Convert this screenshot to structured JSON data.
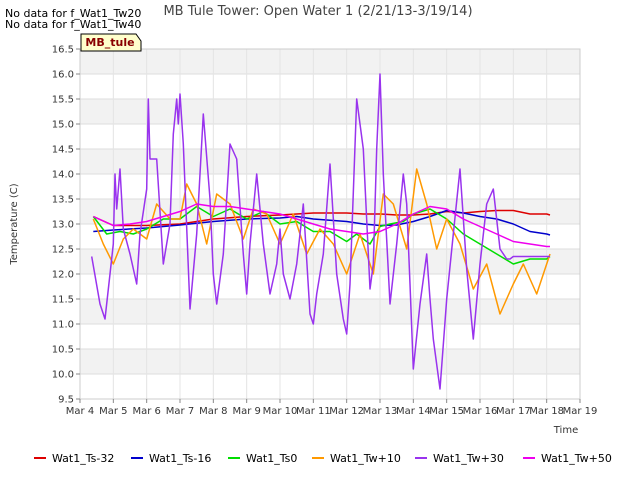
{
  "nodata_messages": [
    "No data for f_Wat1_Tw20",
    "No data for f_Wat1_Tw40"
  ],
  "chart_data": {
    "type": "line",
    "title": "MB Tule Tower: Open Water 1 (2/21/13-3/19/14)",
    "xlabel": "Time",
    "ylabel": "Temperature (C)",
    "ylim": [
      9.5,
      16.5
    ],
    "xlim": [
      4,
      19
    ],
    "x_ticks": [
      {
        "x": 4,
        "label": "Mar 4"
      },
      {
        "x": 5,
        "label": "Mar 5"
      },
      {
        "x": 6,
        "label": "Mar 6"
      },
      {
        "x": 7,
        "label": "Mar 7"
      },
      {
        "x": 8,
        "label": "Mar 8"
      },
      {
        "x": 9,
        "label": "Mar 9"
      },
      {
        "x": 10,
        "label": "Mar 10"
      },
      {
        "x": 11,
        "label": "Mar 11"
      },
      {
        "x": 12,
        "label": "Mar 12"
      },
      {
        "x": 13,
        "label": "Mar 13"
      },
      {
        "x": 14,
        "label": "Mar 14"
      },
      {
        "x": 15,
        "label": "Mar 15"
      },
      {
        "x": 16,
        "label": "Mar 16"
      },
      {
        "x": 17,
        "label": "Mar 17"
      },
      {
        "x": 18,
        "label": "Mar 18"
      },
      {
        "x": 19,
        "label": "Mar 19"
      }
    ],
    "y_ticks": [
      "9.5",
      "10.0",
      "10.5",
      "11.0",
      "11.5",
      "12.0",
      "12.5",
      "13.0",
      "13.5",
      "14.0",
      "14.5",
      "15.0",
      "15.5",
      "16.0",
      "16.5"
    ],
    "grid": true,
    "legend_position": "bottom",
    "annotation_label": "MB_tule",
    "series": [
      {
        "name": "Wat1_Ts-32",
        "color": "#dd0000",
        "x": [
          4.4,
          5,
          6,
          7,
          8,
          9,
          10,
          11,
          12,
          12.5,
          13,
          13.5,
          14,
          14.5,
          15,
          15.5,
          16,
          16.5,
          17,
          17.5,
          18,
          18.1
        ],
        "y": [
          13.15,
          12.97,
          12.97,
          13.0,
          13.1,
          13.15,
          13.18,
          13.22,
          13.22,
          13.2,
          13.2,
          13.18,
          13.18,
          13.2,
          13.25,
          13.22,
          13.25,
          13.27,
          13.27,
          13.2,
          13.2,
          13.18
        ]
      },
      {
        "name": "Wat1_Ts-16",
        "color": "#0000cc",
        "x": [
          4.4,
          5,
          6,
          7,
          8,
          9,
          10,
          10.5,
          11,
          12,
          12.5,
          13,
          13.5,
          14,
          14.5,
          15,
          15.5,
          16,
          16.5,
          17,
          17.5,
          18,
          18.1
        ],
        "y": [
          12.85,
          12.88,
          12.92,
          12.98,
          13.05,
          13.1,
          13.12,
          13.15,
          13.1,
          13.05,
          13.0,
          12.97,
          12.98,
          13.05,
          13.15,
          13.27,
          13.22,
          13.15,
          13.1,
          13.0,
          12.85,
          12.8,
          12.78
        ]
      },
      {
        "name": "Wat1_Ts0",
        "color": "#00dd00",
        "x": [
          4.4,
          4.8,
          5.2,
          5.6,
          6,
          6.5,
          7,
          7.5,
          8,
          8.5,
          9,
          9.5,
          10,
          10.5,
          11,
          11.5,
          12,
          12.3,
          12.7,
          13,
          13.3,
          13.7,
          14,
          14.5,
          15,
          15.5,
          16,
          16.5,
          17,
          17.5,
          18,
          18.1
        ],
        "y": [
          13.15,
          12.8,
          12.85,
          12.8,
          12.9,
          13.1,
          13.1,
          13.35,
          13.15,
          13.3,
          13.1,
          13.25,
          13.0,
          13.05,
          12.85,
          12.85,
          12.65,
          12.8,
          12.6,
          12.95,
          13.0,
          13.05,
          13.2,
          13.3,
          13.1,
          12.8,
          12.6,
          12.4,
          12.2,
          12.3,
          12.3,
          12.35
        ]
      },
      {
        "name": "Wat1_Tw+10",
        "color": "#ff9900",
        "x": [
          4.4,
          4.7,
          5.0,
          5.3,
          5.6,
          6.0,
          6.3,
          6.7,
          7.0,
          7.2,
          7.5,
          7.8,
          8.1,
          8.5,
          8.9,
          9.2,
          9.6,
          10.0,
          10.4,
          10.8,
          11.2,
          11.6,
          12.0,
          12.4,
          12.8,
          13.1,
          13.4,
          13.8,
          14.1,
          14.4,
          14.7,
          15.0,
          15.4,
          15.8,
          16.2,
          16.6,
          17.0,
          17.3,
          17.7,
          18.1
        ],
        "y": [
          13.1,
          12.6,
          12.2,
          12.7,
          12.9,
          12.7,
          13.4,
          13.1,
          13.1,
          13.8,
          13.4,
          12.6,
          13.6,
          13.4,
          12.7,
          13.3,
          13.2,
          12.6,
          13.2,
          12.4,
          12.9,
          12.6,
          12.0,
          12.8,
          12.0,
          13.6,
          13.4,
          12.5,
          14.1,
          13.4,
          12.5,
          13.1,
          12.6,
          11.7,
          12.2,
          11.2,
          11.8,
          12.2,
          11.6,
          12.4
        ]
      },
      {
        "name": "Wat1_Tw+30",
        "color": "#9933ee",
        "x": [
          4.35,
          4.6,
          4.75,
          4.9,
          5.0,
          5.05,
          5.1,
          5.2,
          5.3,
          5.5,
          5.7,
          5.8,
          6.0,
          6.05,
          6.1,
          6.3,
          6.5,
          6.7,
          6.8,
          6.9,
          6.95,
          7.0,
          7.1,
          7.3,
          7.5,
          7.7,
          7.9,
          8.0,
          8.1,
          8.3,
          8.5,
          8.7,
          8.9,
          9.0,
          9.1,
          9.3,
          9.5,
          9.7,
          9.9,
          10.0,
          10.1,
          10.3,
          10.5,
          10.7,
          10.9,
          11.0,
          11.1,
          11.3,
          11.5,
          11.7,
          11.9,
          12.0,
          12.1,
          12.3,
          12.5,
          12.7,
          12.8,
          12.9,
          13.0,
          13.1,
          13.3,
          13.5,
          13.7,
          13.8,
          13.9,
          14.0,
          14.2,
          14.4,
          14.5,
          14.6,
          14.8,
          15.0,
          15.2,
          15.4,
          15.6,
          15.8,
          16.0,
          16.2,
          16.4,
          16.6,
          16.8,
          16.9,
          17.0,
          17.2,
          17.4,
          17.6,
          17.8,
          17.9,
          18.0,
          18.1
        ],
        "y": [
          12.35,
          11.4,
          11.1,
          12.0,
          12.6,
          14.0,
          13.3,
          14.1,
          12.9,
          12.4,
          11.8,
          12.8,
          13.7,
          15.5,
          14.3,
          14.3,
          12.2,
          13.0,
          14.8,
          15.5,
          15.0,
          15.6,
          14.6,
          11.3,
          12.8,
          15.2,
          13.5,
          12.0,
          11.4,
          12.4,
          14.6,
          14.3,
          12.4,
          11.6,
          12.6,
          14.0,
          12.6,
          11.6,
          12.2,
          12.9,
          12.0,
          11.5,
          12.2,
          13.4,
          11.2,
          11.0,
          11.6,
          12.4,
          14.2,
          12.0,
          11.1,
          10.8,
          11.8,
          15.5,
          14.5,
          11.7,
          12.2,
          14.5,
          16.0,
          14.0,
          11.4,
          12.6,
          14.0,
          13.4,
          11.8,
          10.1,
          11.4,
          12.4,
          11.5,
          10.7,
          9.7,
          11.5,
          12.8,
          14.1,
          12.1,
          10.7,
          12.2,
          13.4,
          13.7,
          12.5,
          12.3,
          12.3,
          12.35,
          12.35,
          12.35,
          12.35,
          12.35,
          12.35,
          12.35,
          12.35
        ]
      },
      {
        "name": "Wat1_Tw+50",
        "color": "#ee00ee",
        "x": [
          4.4,
          5,
          5.5,
          6,
          6.5,
          7,
          7.5,
          8,
          8.5,
          9,
          9.5,
          10,
          10.5,
          11,
          11.5,
          12,
          12.5,
          13,
          13.5,
          14,
          14.5,
          15,
          15.5,
          16,
          16.5,
          17,
          17.5,
          18,
          18.1
        ],
        "y": [
          13.15,
          12.97,
          13.0,
          13.05,
          13.15,
          13.25,
          13.4,
          13.35,
          13.35,
          13.3,
          13.25,
          13.2,
          13.1,
          13.0,
          12.9,
          12.85,
          12.8,
          12.85,
          13.0,
          13.2,
          13.35,
          13.3,
          13.1,
          12.95,
          12.8,
          12.65,
          12.6,
          12.55,
          12.55
        ]
      }
    ]
  }
}
